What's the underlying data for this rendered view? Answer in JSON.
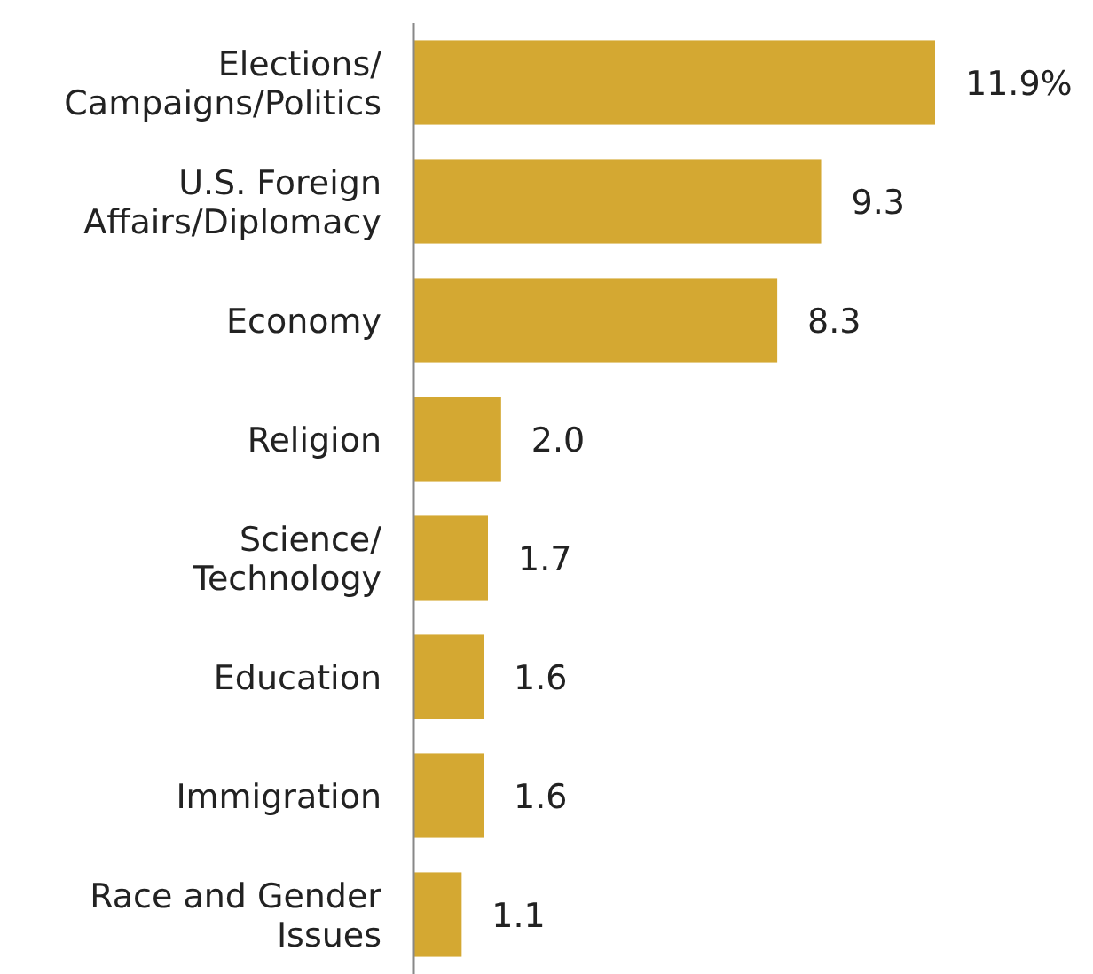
{
  "chart_data": {
    "type": "bar",
    "orientation": "horizontal",
    "categories": [
      "Elections/\nCampaigns/Politics",
      "U.S. Foreign\nAffairs/Diplomacy",
      "Economy",
      "Religion",
      "Science/\nTechnology",
      "Education",
      "Immigration",
      "Race and Gender\nIssues"
    ],
    "values": [
      11.9,
      9.3,
      8.3,
      2.0,
      1.7,
      1.6,
      1.6,
      1.1
    ],
    "value_labels": [
      "11.9%",
      "9.3",
      "8.3",
      "2.0",
      "1.7",
      "1.6",
      "1.6",
      "1.1"
    ],
    "color": "#d4a832"
  }
}
